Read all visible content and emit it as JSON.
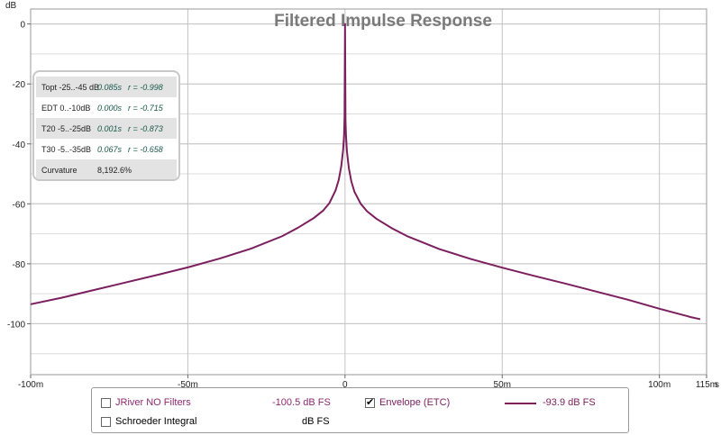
{
  "chart_data": {
    "type": "line",
    "title": "Filtered Impulse Response",
    "ylabel": "dB",
    "xlabel_unit": "s",
    "xlim": [
      -0.1,
      0.115
    ],
    "ylim": [
      -117,
      5
    ],
    "grid": true,
    "x_ticks": [
      {
        "value": -0.1,
        "label": "-100m"
      },
      {
        "value": -0.05,
        "label": "-50m"
      },
      {
        "value": 0,
        "label": "0"
      },
      {
        "value": 0.05,
        "label": "50m"
      },
      {
        "value": 0.1,
        "label": "100m"
      },
      {
        "value": 0.115,
        "label": "115m"
      }
    ],
    "y_ticks": [
      {
        "value": 0,
        "label": "0"
      },
      {
        "value": -20,
        "label": "-20"
      },
      {
        "value": -40,
        "label": "-40"
      },
      {
        "value": -60,
        "label": "-60"
      },
      {
        "value": -80,
        "label": "-80"
      },
      {
        "value": -100,
        "label": "-100"
      }
    ],
    "series": [
      {
        "name": "Envelope (ETC)",
        "color": "#7b1f5e",
        "x": [
          -0.1,
          -0.09,
          -0.08,
          -0.07,
          -0.06,
          -0.05,
          -0.04,
          -0.03,
          -0.02,
          -0.015,
          -0.01,
          -0.007,
          -0.005,
          -0.003,
          -0.002,
          -0.0012,
          -0.0006,
          -0.0003,
          -0.00015,
          0,
          0.00015,
          0.0003,
          0.0006,
          0.0012,
          0.002,
          0.003,
          0.005,
          0.007,
          0.01,
          0.015,
          0.02,
          0.03,
          0.04,
          0.05,
          0.06,
          0.07,
          0.08,
          0.09,
          0.1,
          0.11,
          0.113
        ],
        "values": [
          -93.5,
          -91.3,
          -88.8,
          -86.3,
          -83.8,
          -81.2,
          -78.3,
          -75.0,
          -70.8,
          -68.0,
          -64.8,
          -62.3,
          -59.8,
          -55.5,
          -52.0,
          -47.5,
          -42.0,
          -37.0,
          -31.0,
          0,
          -32.0,
          -37.0,
          -42.5,
          -48.0,
          -52.5,
          -56.0,
          -60.0,
          -62.5,
          -65.0,
          -68.2,
          -70.9,
          -75.1,
          -78.4,
          -81.3,
          -84.0,
          -86.6,
          -89.3,
          -92.0,
          -95.0,
          -97.8,
          -98.5
        ]
      }
    ]
  },
  "stats": {
    "rows": [
      {
        "name": "Topt -25..-45 dB",
        "time": "0.085s",
        "r": "r = -0.998"
      },
      {
        "name": "EDT  0..-10dB",
        "time": "0.000s",
        "r": "r = -0.715"
      },
      {
        "name": "T20 -5..-25dB",
        "time": "0.001s",
        "r": "r = -0.873"
      },
      {
        "name": "T30 -5..-35dB",
        "time": "0.067s",
        "r": "r = -0.658"
      },
      {
        "name": "Curvature",
        "time": "8,192.6%",
        "r": ""
      }
    ]
  },
  "legend": {
    "items": [
      {
        "label": "JRiver NO Filters",
        "checked": false,
        "value": "-100.5 dB FS",
        "color": "#8e2a72"
      },
      {
        "label": "Envelope (ETC)",
        "checked": true,
        "value": "-93.9 dB FS",
        "color": "#7b1f5e"
      },
      {
        "label": "Schroeder Integral",
        "checked": false,
        "value": "dB FS",
        "color": "#000000"
      }
    ],
    "check_mark": "✔"
  }
}
